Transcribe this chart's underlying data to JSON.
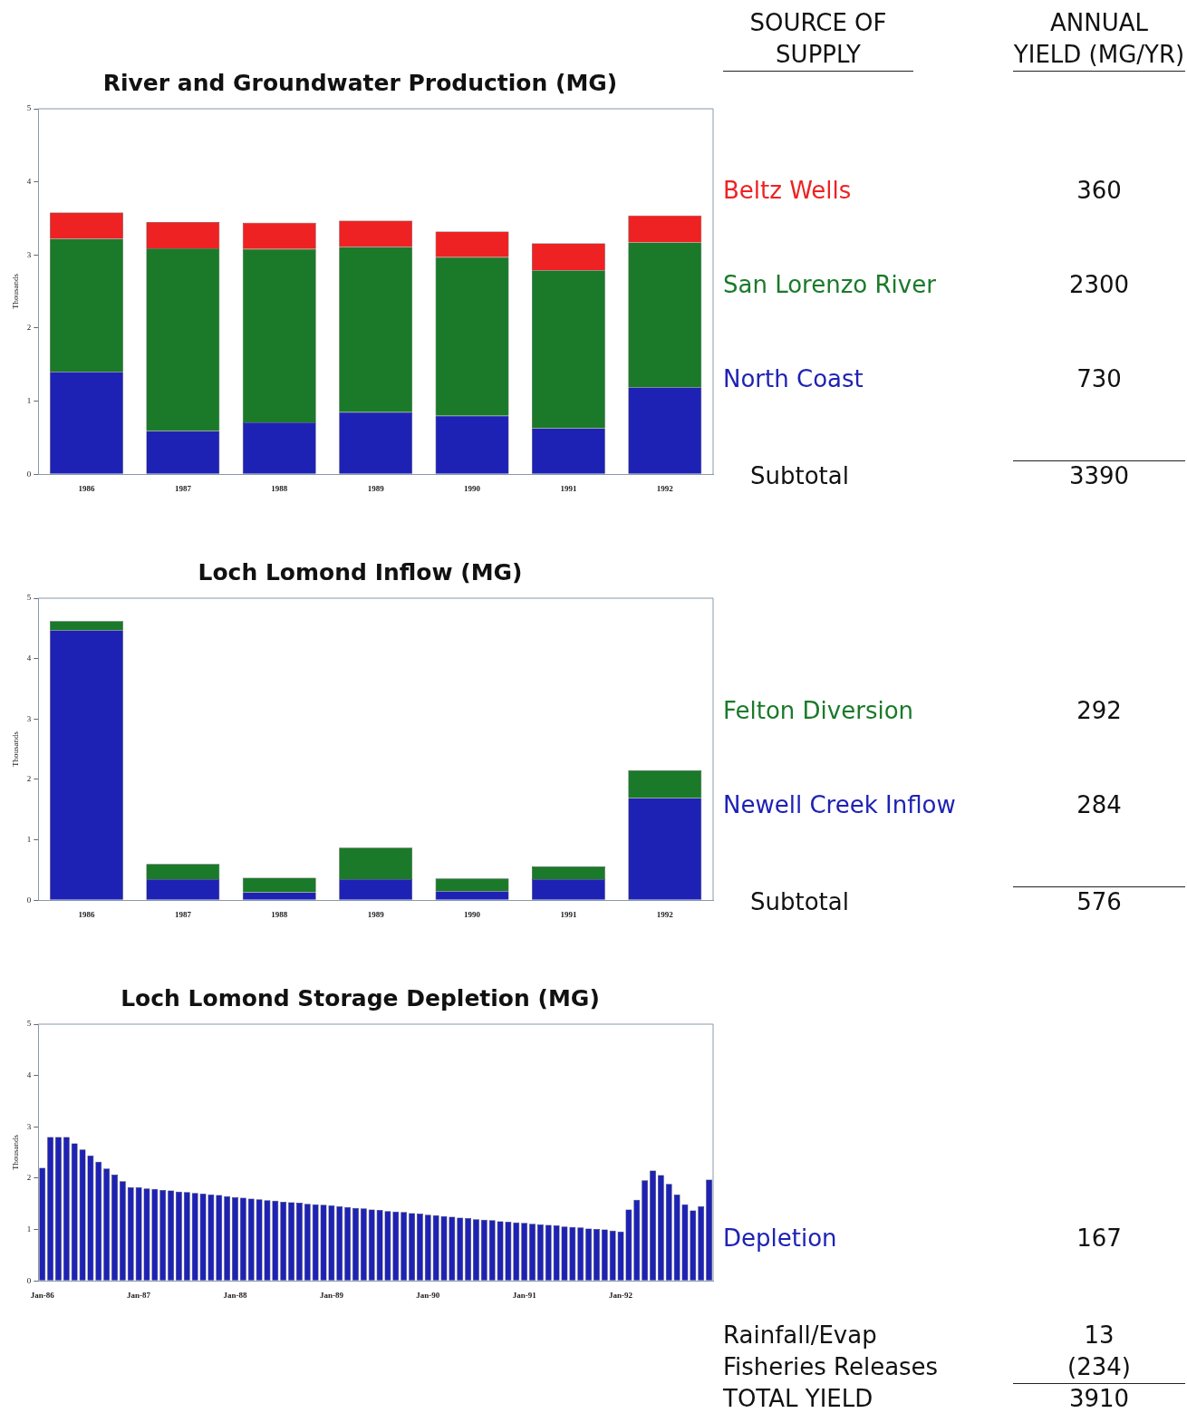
{
  "chart_data": [
    {
      "type": "bar",
      "title": "River and Groundwater Production (MG)",
      "ylabel": "Thousands",
      "stacked": true,
      "legend": "right",
      "legend_title": "SOURCE OF SUPPLY",
      "categories": [
        "1986",
        "1987",
        "1988",
        "1989",
        "1990",
        "1991",
        "1992"
      ],
      "series": [
        {
          "name": "North Coast",
          "color": "#1e22b4",
          "values": [
            1.4,
            0.59,
            0.71,
            0.85,
            0.8,
            0.63,
            1.19
          ]
        },
        {
          "name": "San Lorenzo River",
          "color": "#1a7a2a",
          "values": [
            1.82,
            2.5,
            2.37,
            2.26,
            2.17,
            2.16,
            1.98
          ]
        },
        {
          "name": "Beltz Wells",
          "color": "#ee2222",
          "values": [
            0.36,
            0.36,
            0.36,
            0.36,
            0.35,
            0.37,
            0.37
          ]
        }
      ],
      "ylim": [
        0,
        5
      ],
      "yticks": [
        0,
        1,
        2,
        3,
        4,
        5
      ],
      "annotations": [
        "ANNUAL YIELD (MG/YR)",
        "360",
        "2300",
        "730",
        "Subtotal",
        "3390"
      ]
    },
    {
      "type": "bar",
      "title": "Loch Lomond Inflow (MG)",
      "ylabel": "Thousands",
      "stacked": true,
      "legend": "right",
      "categories": [
        "1986",
        "1987",
        "1988",
        "1989",
        "1990",
        "1991",
        "1992"
      ],
      "series": [
        {
          "name": "Newell Creek Inflow",
          "color": "#1e22b4",
          "values": [
            4.47,
            0.35,
            0.13,
            0.35,
            0.15,
            0.35,
            1.69
          ]
        },
        {
          "name": "Felton Diversion",
          "color": "#1a7a2a",
          "values": [
            0.15,
            0.25,
            0.24,
            0.52,
            0.21,
            0.21,
            0.46
          ]
        }
      ],
      "ylim": [
        0,
        5
      ],
      "yticks": [
        0,
        1,
        2,
        3,
        4,
        5
      ],
      "annotations": [
        "292",
        "284",
        "Subtotal",
        "576"
      ]
    },
    {
      "type": "bar",
      "title": "Loch Lomond Storage Depletion (MG)",
      "ylabel": "Thousands",
      "legend": "right",
      "categories": [
        "Jan-86",
        null,
        null,
        null,
        null,
        null,
        null,
        null,
        null,
        null,
        null,
        null,
        "Jan-87",
        null,
        null,
        null,
        null,
        null,
        null,
        null,
        null,
        null,
        null,
        null,
        "Jan-88",
        null,
        null,
        null,
        null,
        null,
        null,
        null,
        null,
        null,
        null,
        null,
        "Jan-89",
        null,
        null,
        null,
        null,
        null,
        null,
        null,
        null,
        null,
        null,
        null,
        "Jan-90",
        null,
        null,
        null,
        null,
        null,
        null,
        null,
        null,
        null,
        null,
        null,
        "Jan-91",
        null,
        null,
        null,
        null,
        null,
        null,
        null,
        null,
        null,
        null,
        null,
        "Jan-92",
        null,
        null,
        null,
        null,
        null,
        null,
        null,
        null,
        null,
        null,
        null
      ],
      "series": [
        {
          "name": "Depletion",
          "color": "#1e22b4",
          "values": [
            2.2,
            2.8,
            2.8,
            2.8,
            2.68,
            2.56,
            2.44,
            2.32,
            2.19,
            2.07,
            1.94,
            1.82,
            1.82,
            1.8,
            1.79,
            1.77,
            1.76,
            1.74,
            1.73,
            1.71,
            1.7,
            1.68,
            1.67,
            1.65,
            1.63,
            1.62,
            1.6,
            1.59,
            1.57,
            1.56,
            1.54,
            1.53,
            1.52,
            1.5,
            1.49,
            1.48,
            1.47,
            1.45,
            1.44,
            1.42,
            1.41,
            1.39,
            1.38,
            1.36,
            1.35,
            1.34,
            1.32,
            1.31,
            1.29,
            1.28,
            1.26,
            1.25,
            1.23,
            1.22,
            1.2,
            1.19,
            1.18,
            1.16,
            1.15,
            1.14,
            1.13,
            1.11,
            1.1,
            1.09,
            1.08,
            1.06,
            1.05,
            1.04,
            1.02,
            1.01,
            1.0,
            0.98,
            0.96,
            1.39,
            1.58,
            1.96,
            2.15,
            2.06,
            1.89,
            1.68,
            1.49,
            1.37,
            1.45,
            1.97
          ]
        }
      ],
      "ylim": [
        0,
        5
      ],
      "yticks": [
        0,
        1,
        2,
        3,
        4,
        5
      ],
      "annotations": [
        "167",
        "Rainfall/Evap",
        "13",
        "Fisheries Releases",
        "(234)",
        "TOTAL YIELD",
        "3910"
      ]
    }
  ]
}
